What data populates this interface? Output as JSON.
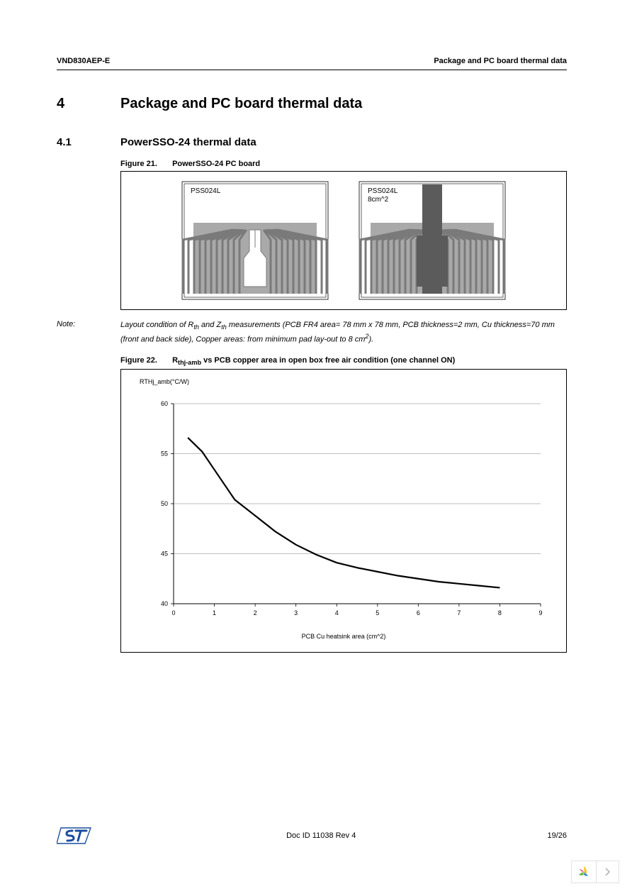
{
  "header": {
    "left": "VND830AEP-E",
    "right": "Package and PC board thermal data"
  },
  "section": {
    "num": "4",
    "title": "Package and PC board thermal data"
  },
  "subsection": {
    "num": "4.1",
    "title": "PowerSSO-24 thermal data"
  },
  "figure21": {
    "label": "Figure 21.",
    "caption": "PowerSSO-24 PC board",
    "board_left_label": "PSS024L",
    "board_right_label_l1": "PSS024L",
    "board_right_label_l2": "8cm^2",
    "board_bg": "#a9a9a9",
    "trace_color": "#7a7a7a",
    "dark_pad": "#5b5b5b"
  },
  "note": {
    "label": "Note:",
    "body_html": "Layout condition of R<sub>th</sub> and Z<sub>th</sub> measurements (PCB FR4 area= 78 mm x 78 mm, PCB thickness=2 mm, Cu thickness=70 mm (front and back side), Copper areas: from minimum pad lay-out to 8 cm<sup>2</sup>)."
  },
  "figure22": {
    "label": "Figure 22.",
    "caption_html": "R<sub>thj-amb</sub> vs PCB copper area in open box free air condition (one channel ON)",
    "chart": {
      "type": "line",
      "ylabel": "RTHj_amb(°C/W)",
      "xlabel": "PCB Cu heatsink area (cm^2)",
      "xlim": [
        0,
        9
      ],
      "xtick_step": 1,
      "ylim": [
        40,
        60
      ],
      "ytick_step": 5,
      "line_color": "#000000",
      "line_width": 2.2,
      "grid_color": "#808080",
      "grid_width": 0.6,
      "axis_color": "#000000",
      "tick_fontsize": 9,
      "background_color": "#ffffff",
      "data": [
        {
          "x": 0.35,
          "y": 56.6
        },
        {
          "x": 0.7,
          "y": 55.2
        },
        {
          "x": 1.0,
          "y": 53.4
        },
        {
          "x": 1.5,
          "y": 50.4
        },
        {
          "x": 2.0,
          "y": 48.8
        },
        {
          "x": 2.5,
          "y": 47.2
        },
        {
          "x": 3.0,
          "y": 45.9
        },
        {
          "x": 3.5,
          "y": 44.9
        },
        {
          "x": 4.0,
          "y": 44.1
        },
        {
          "x": 4.5,
          "y": 43.6
        },
        {
          "x": 5.0,
          "y": 43.2
        },
        {
          "x": 5.5,
          "y": 42.8
        },
        {
          "x": 6.0,
          "y": 42.5
        },
        {
          "x": 6.5,
          "y": 42.2
        },
        {
          "x": 7.0,
          "y": 42.0
        },
        {
          "x": 7.5,
          "y": 41.8
        },
        {
          "x": 8.0,
          "y": 41.6
        }
      ]
    }
  },
  "footer": {
    "doc_id": "Doc ID 11038 Rev 4",
    "page": "19/26"
  },
  "logo": {
    "blue": "#1a4fa0",
    "text": "ST"
  }
}
